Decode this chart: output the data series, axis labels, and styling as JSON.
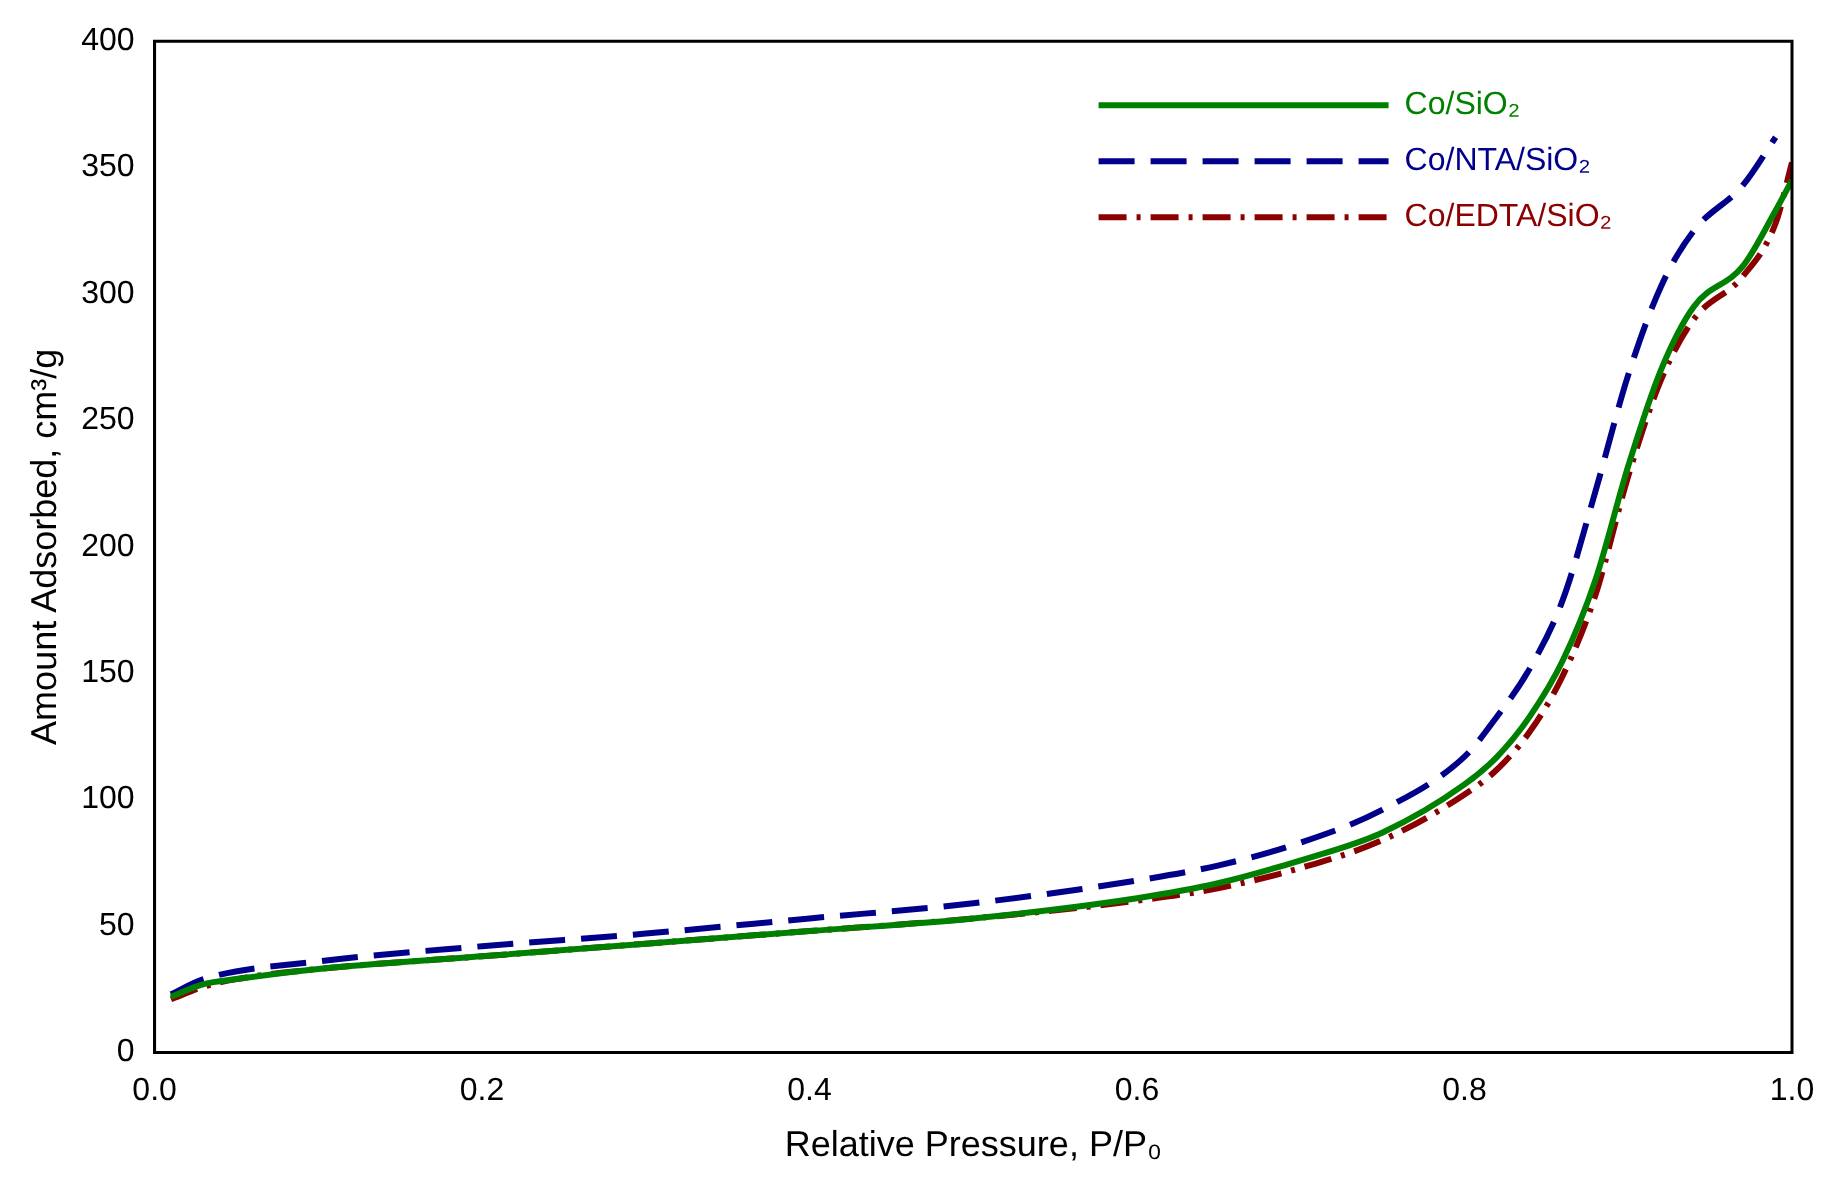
{
  "chart_data": {
    "type": "line",
    "xlabel": "Relative Pressure, P/P₀",
    "ylabel": "Amount Adsorbed, cm³/g",
    "xlim": [
      0,
      1
    ],
    "xticks": [
      {
        "value": 0,
        "label": "0.0"
      },
      0.2,
      0.4,
      0.6,
      0.8,
      {
        "value": 1,
        "label": "1.0"
      }
    ],
    "ylim": [
      0,
      400
    ],
    "yticks": [
      0,
      50,
      100,
      150,
      200,
      250,
      300,
      350,
      400
    ],
    "grid": false,
    "legend": "top right",
    "marker": "none",
    "series": [
      {
        "name": "Co/SiO₂",
        "color": "#008000",
        "line_style": "solid",
        "x": [
          0.01,
          0.03,
          0.05,
          0.1,
          0.2,
          0.3,
          0.4,
          0.5,
          0.6,
          0.65,
          0.7,
          0.75,
          0.8,
          0.82,
          0.84,
          0.86,
          0.88,
          0.9,
          0.92,
          0.94,
          0.97,
          0.99,
          1.0
        ],
        "values": [
          22,
          27,
          29,
          33,
          38,
          43,
          48,
          53,
          61,
          67,
          76,
          87,
          106,
          117,
          133,
          155,
          187,
          232,
          270,
          295,
          311,
          333,
          345
        ]
      },
      {
        "name": "Co/NTA/SiO₂",
        "color": "#00008b",
        "line_style": "dashed",
        "x": [
          0.01,
          0.03,
          0.1,
          0.2,
          0.3,
          0.4,
          0.5,
          0.6,
          0.65,
          0.7,
          0.75,
          0.8,
          0.82,
          0.84,
          0.86,
          0.88,
          0.9,
          0.92,
          0.94,
          0.97,
          0.99
        ],
        "values": [
          23,
          29,
          36,
          42,
          47,
          53,
          59,
          68,
          74,
          83,
          96,
          117,
          133,
          152,
          179,
          222,
          268,
          303,
          325,
          343,
          362
        ]
      },
      {
        "name": "Co/EDTA/SiO₂",
        "color": "#8b0000",
        "line_style": "dashdot",
        "x": [
          0.01,
          0.03,
          0.05,
          0.1,
          0.2,
          0.3,
          0.4,
          0.5,
          0.6,
          0.65,
          0.7,
          0.75,
          0.8,
          0.82,
          0.84,
          0.86,
          0.88,
          0.9,
          0.92,
          0.94,
          0.97,
          0.99,
          1.0
        ],
        "values": [
          21,
          26,
          29,
          33,
          38,
          43,
          48,
          53,
          60,
          65,
          73,
          84,
          102,
          112,
          127,
          149,
          181,
          228,
          266,
          290,
          307,
          328,
          352
        ]
      }
    ]
  }
}
